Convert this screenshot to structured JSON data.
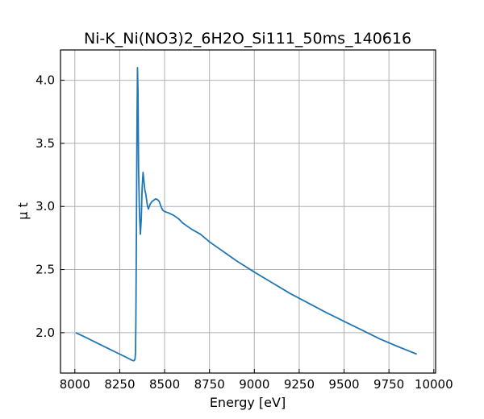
{
  "chart_data": {
    "type": "line",
    "title": "Ni-K_Ni(NO3)2_6H2O_Si111_50ms_140616",
    "xlabel": "Energy [eV]",
    "ylabel": "μ t",
    "xlim": [
      7920,
      10010
    ],
    "ylim": [
      1.68,
      4.24
    ],
    "xticks": [
      8000,
      8250,
      8500,
      8750,
      9000,
      9250,
      9500,
      9750,
      10000
    ],
    "yticks": [
      2.0,
      2.5,
      3.0,
      3.5,
      4.0
    ],
    "xtick_labels": [
      "8000",
      "8250",
      "8500",
      "8750",
      "9000",
      "9250",
      "9500",
      "9750",
      "10000"
    ],
    "ytick_labels": [
      "2.0",
      "2.5",
      "3.0",
      "3.5",
      "4.0"
    ],
    "grid": true,
    "line_color": "#1f77b4",
    "series": [
      {
        "x": [
          8005,
          8050,
          8100,
          8150,
          8200,
          8250,
          8280,
          8300,
          8320,
          8330,
          8335,
          8338,
          8340,
          8343,
          8346,
          8349,
          8352,
          8355,
          8360,
          8365,
          8370,
          8375,
          8380,
          8385,
          8390,
          8395,
          8400,
          8405,
          8410,
          8420,
          8430,
          8440,
          8450,
          8460,
          8470,
          8480,
          8490,
          8500,
          8520,
          8550,
          8580,
          8600,
          8630,
          8650,
          8700,
          8750,
          8800,
          8850,
          8900,
          8950,
          9000,
          9100,
          9200,
          9300,
          9400,
          9500,
          9600,
          9700,
          9800,
          9905
        ],
        "y": [
          2.0,
          1.97,
          1.935,
          1.9,
          1.865,
          1.83,
          1.81,
          1.795,
          1.78,
          1.778,
          1.79,
          1.84,
          2.1,
          2.8,
          3.6,
          4.1,
          3.9,
          3.3,
          2.95,
          2.78,
          2.9,
          3.15,
          3.27,
          3.2,
          3.13,
          3.1,
          3.05,
          3.0,
          2.98,
          3.02,
          3.04,
          3.05,
          3.06,
          3.055,
          3.04,
          3.0,
          2.97,
          2.96,
          2.95,
          2.93,
          2.9,
          2.87,
          2.84,
          2.82,
          2.78,
          2.72,
          2.67,
          2.62,
          2.57,
          2.525,
          2.48,
          2.395,
          2.31,
          2.235,
          2.16,
          2.09,
          2.02,
          1.95,
          1.89,
          1.83
        ]
      }
    ]
  }
}
